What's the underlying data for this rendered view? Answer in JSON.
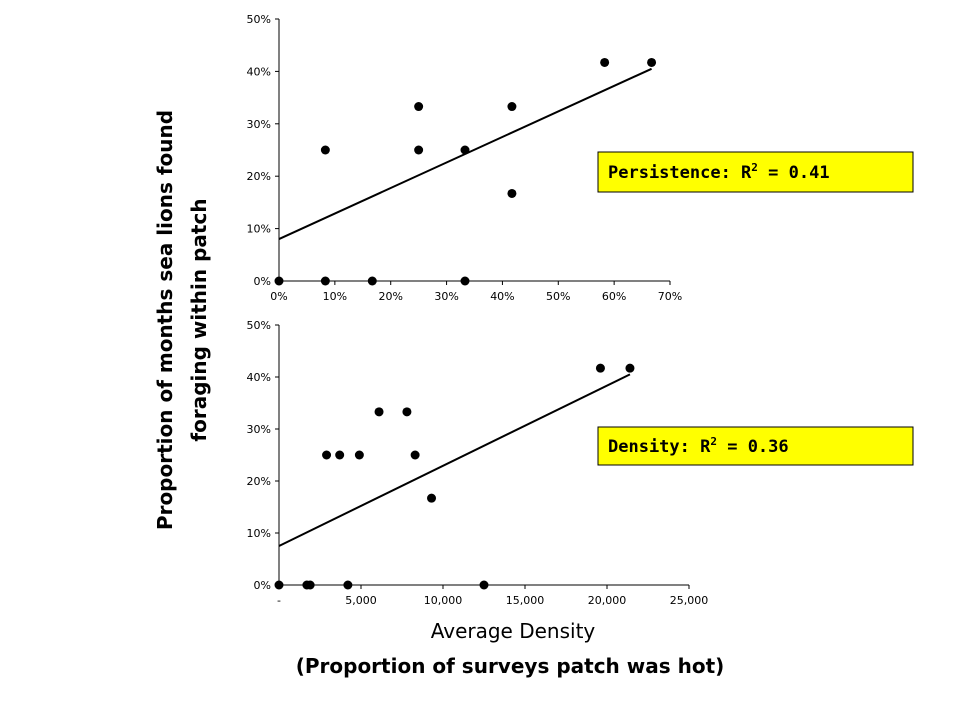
{
  "y_axis_label_line1": "Proportion of months sea lions found",
  "y_axis_label_line2": "foraging within patch",
  "x_axis_label_line1": "Average Density",
  "x_axis_label_line2": "(Proportion of surveys patch was hot)",
  "chart_data": [
    {
      "type": "scatter",
      "annotation": {
        "prefix": "Persistence:  R",
        "sup": "2",
        "suffix": " = 0.41"
      },
      "xlim": [
        0,
        0.7
      ],
      "ylim": [
        0,
        0.5
      ],
      "x_ticks": [
        0,
        0.1,
        0.2,
        0.3,
        0.4,
        0.5,
        0.6,
        0.7
      ],
      "x_tick_labels": [
        "0%",
        "10%",
        "20%",
        "30%",
        "40%",
        "50%",
        "60%",
        "70%"
      ],
      "y_ticks": [
        0,
        0.1,
        0.2,
        0.3,
        0.4,
        0.5
      ],
      "y_tick_labels": [
        "0%",
        "10%",
        "20%",
        "30%",
        "40%",
        "50%"
      ],
      "points": [
        [
          0,
          0
        ],
        [
          0.083,
          0.25
        ],
        [
          0.083,
          0
        ],
        [
          0.167,
          0
        ],
        [
          0.25,
          0.333
        ],
        [
          0.25,
          0.25
        ],
        [
          0.333,
          0.25
        ],
        [
          0.333,
          0
        ],
        [
          0.417,
          0.333
        ],
        [
          0.417,
          0.167
        ],
        [
          0.583,
          0.417
        ],
        [
          0.667,
          0.417
        ]
      ],
      "trendline": [
        [
          0,
          0.08
        ],
        [
          0.667,
          0.405
        ]
      ]
    },
    {
      "type": "scatter",
      "annotation": {
        "prefix": "Density:  R",
        "sup": "2",
        "suffix": " = 0.36"
      },
      "xlim": [
        0,
        25000
      ],
      "ylim": [
        0,
        0.5
      ],
      "x_ticks": [
        0,
        5000,
        10000,
        15000,
        20000,
        25000
      ],
      "x_tick_labels": [
        "-",
        "5,000",
        "10,000",
        "15,000",
        "20,000",
        "25,000"
      ],
      "y_ticks": [
        0,
        0.1,
        0.2,
        0.3,
        0.4,
        0.5
      ],
      "y_tick_labels": [
        "0%",
        "10%",
        "20%",
        "30%",
        "40%",
        "50%"
      ],
      "points": [
        [
          0,
          0
        ],
        [
          1700,
          0
        ],
        [
          1900,
          0
        ],
        [
          2900,
          0.25
        ],
        [
          3700,
          0.25
        ],
        [
          4200,
          0
        ],
        [
          4900,
          0.25
        ],
        [
          6100,
          0.333
        ],
        [
          7800,
          0.333
        ],
        [
          8300,
          0.25
        ],
        [
          9300,
          0.167
        ],
        [
          12500,
          0
        ],
        [
          19600,
          0.417
        ],
        [
          21400,
          0.417
        ]
      ],
      "trendline": [
        [
          0,
          0.075
        ],
        [
          21400,
          0.405
        ]
      ]
    }
  ]
}
